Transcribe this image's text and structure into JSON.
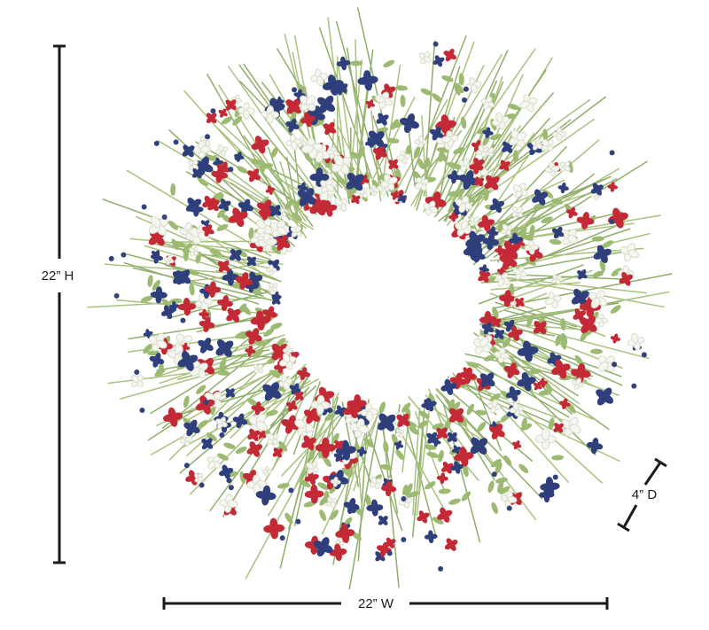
{
  "dimensions": {
    "height": "22” H",
    "width": "22” W",
    "depth": "4” D"
  }
}
